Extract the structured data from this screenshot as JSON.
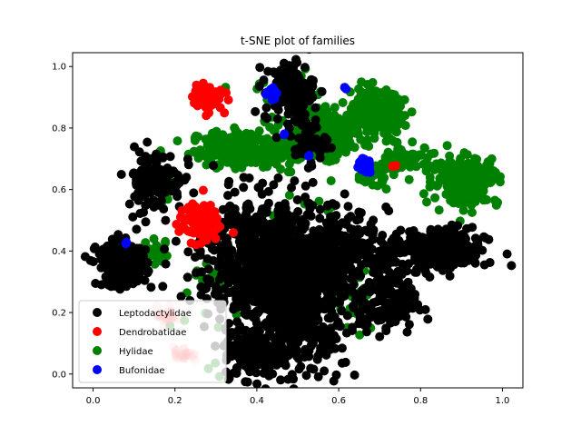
{
  "chart_data": {
    "type": "scatter",
    "title": "t-SNE plot of families",
    "xlabel": "",
    "ylabel": "",
    "xlim": [
      -0.05,
      1.05
    ],
    "ylim": [
      -0.045,
      1.045
    ],
    "xticks": [
      "0.0",
      "0.2",
      "0.4",
      "0.6",
      "0.8",
      "1.0"
    ],
    "yticks": [
      "0.0",
      "0.2",
      "0.4",
      "0.6",
      "0.8",
      "1.0"
    ],
    "grid": false,
    "legend_position": "lower-left",
    "series": [
      {
        "name": "Leptodactylidae",
        "color": "#000000",
        "clusters": [
          {
            "cx": 0.07,
            "cy": 0.355,
            "sx": 0.03,
            "sy": 0.035,
            "n": 260
          },
          {
            "cx": 0.42,
            "cy": 0.38,
            "sx": 0.08,
            "sy": 0.1,
            "n": 700
          },
          {
            "cx": 0.5,
            "cy": 0.2,
            "sx": 0.06,
            "sy": 0.09,
            "n": 450
          },
          {
            "cx": 0.6,
            "cy": 0.4,
            "sx": 0.06,
            "sy": 0.06,
            "n": 300
          },
          {
            "cx": 0.84,
            "cy": 0.4,
            "sx": 0.06,
            "sy": 0.035,
            "n": 280
          },
          {
            "cx": 0.72,
            "cy": 0.23,
            "sx": 0.035,
            "sy": 0.05,
            "n": 140
          },
          {
            "cx": 0.39,
            "cy": 0.07,
            "sx": 0.035,
            "sy": 0.04,
            "n": 160
          },
          {
            "cx": 0.15,
            "cy": 0.63,
            "sx": 0.035,
            "sy": 0.05,
            "n": 130
          },
          {
            "cx": 0.48,
            "cy": 0.92,
            "sx": 0.03,
            "sy": 0.05,
            "n": 120
          },
          {
            "cx": 0.52,
            "cy": 0.76,
            "sx": 0.025,
            "sy": 0.04,
            "n": 50
          }
        ]
      },
      {
        "name": "Dendrobatidae",
        "color": "#ff0000",
        "clusters": [
          {
            "cx": 0.28,
            "cy": 0.9,
            "sx": 0.018,
            "sy": 0.02,
            "n": 80
          },
          {
            "cx": 0.26,
            "cy": 0.49,
            "sx": 0.025,
            "sy": 0.03,
            "n": 120
          },
          {
            "cx": 0.74,
            "cy": 0.675,
            "sx": 0.005,
            "sy": 0.005,
            "n": 3
          }
        ],
        "faint_clusters": [
          {
            "cx": 0.18,
            "cy": 0.19,
            "sx": 0.012,
            "sy": 0.015,
            "n": 30
          },
          {
            "cx": 0.22,
            "cy": 0.065,
            "sx": 0.012,
            "sy": 0.012,
            "n": 30
          }
        ]
      },
      {
        "name": "Hylidae",
        "color": "#008000",
        "clusters": [
          {
            "cx": 0.36,
            "cy": 0.73,
            "sx": 0.06,
            "sy": 0.03,
            "n": 200
          },
          {
            "cx": 0.5,
            "cy": 0.73,
            "sx": 0.05,
            "sy": 0.02,
            "n": 120
          },
          {
            "cx": 0.58,
            "cy": 0.8,
            "sx": 0.06,
            "sy": 0.04,
            "n": 180
          },
          {
            "cx": 0.7,
            "cy": 0.85,
            "sx": 0.03,
            "sy": 0.035,
            "n": 200
          },
          {
            "cx": 0.91,
            "cy": 0.63,
            "sx": 0.04,
            "sy": 0.04,
            "n": 220
          },
          {
            "cx": 0.77,
            "cy": 0.7,
            "sx": 0.03,
            "sy": 0.02,
            "n": 60
          },
          {
            "cx": 0.36,
            "cy": 0.32,
            "sx": 0.04,
            "sy": 0.025,
            "n": 100
          },
          {
            "cx": 0.18,
            "cy": 0.6,
            "sx": 0.015,
            "sy": 0.015,
            "n": 30
          },
          {
            "cx": 0.68,
            "cy": 0.65,
            "sx": 0.02,
            "sy": 0.02,
            "n": 40
          },
          {
            "cx": 0.65,
            "cy": 0.25,
            "sx": 0.03,
            "sy": 0.05,
            "n": 30
          },
          {
            "cx": 0.15,
            "cy": 0.39,
            "sx": 0.02,
            "sy": 0.02,
            "n": 25
          },
          {
            "cx": 0.5,
            "cy": 0.45,
            "sx": 0.05,
            "sy": 0.1,
            "n": 25
          },
          {
            "cx": 0.45,
            "cy": 0.9,
            "sx": 0.05,
            "sy": 0.05,
            "n": 20
          },
          {
            "cx": 0.27,
            "cy": 0.2,
            "sx": 0.05,
            "sy": 0.1,
            "n": 15
          }
        ]
      },
      {
        "name": "Bufonidae",
        "color": "#0000ff",
        "clusters": [
          {
            "cx": 0.66,
            "cy": 0.675,
            "sx": 0.01,
            "sy": 0.012,
            "n": 25
          },
          {
            "cx": 0.44,
            "cy": 0.915,
            "sx": 0.008,
            "sy": 0.012,
            "n": 10
          },
          {
            "cx": 0.47,
            "cy": 0.78,
            "sx": 0.003,
            "sy": 0.003,
            "n": 2
          },
          {
            "cx": 0.525,
            "cy": 0.71,
            "sx": 0.003,
            "sy": 0.003,
            "n": 2
          },
          {
            "cx": 0.62,
            "cy": 0.93,
            "sx": 0.003,
            "sy": 0.003,
            "n": 2
          },
          {
            "cx": 0.085,
            "cy": 0.425,
            "sx": 0.003,
            "sy": 0.003,
            "n": 2
          }
        ]
      }
    ]
  }
}
